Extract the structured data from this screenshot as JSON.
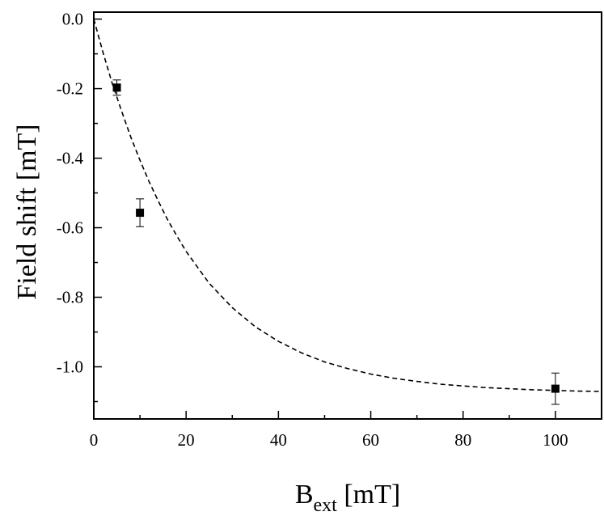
{
  "chart_data": {
    "type": "scatter",
    "xlabel": {
      "main": "B",
      "subscript": "ext",
      "unit": " [mT]"
    },
    "ylabel": "Field shift [mT]",
    "xlim": [
      0,
      110
    ],
    "ylim": [
      -1.15,
      0.02
    ],
    "xticks": [
      0,
      20,
      40,
      60,
      80,
      100
    ],
    "xtick_labels": [
      "0",
      "20",
      "40",
      "60",
      "80",
      "100"
    ],
    "yticks": [
      0.0,
      -0.2,
      -0.4,
      -0.6,
      -0.8,
      -1.0
    ],
    "ytick_labels": [
      "0.0",
      "-0.2",
      "-0.4",
      "-0.6",
      "-0.8",
      "-1.0"
    ],
    "grid": false,
    "series": [
      {
        "kind": "markers-with-errorbars",
        "marker": "square",
        "color": "#000000",
        "points": [
          {
            "x": 5,
            "y": -0.197,
            "err": 0.022
          },
          {
            "x": 10,
            "y": -0.557,
            "err": 0.04
          },
          {
            "x": 100,
            "y": -1.063,
            "err": 0.045
          }
        ]
      },
      {
        "kind": "fit-curve",
        "style": "dashed",
        "color": "#000000",
        "x": [
          0,
          2,
          4,
          6,
          8,
          10,
          12,
          14,
          16,
          18,
          20,
          25,
          30,
          35,
          40,
          45,
          50,
          55,
          60,
          65,
          70,
          75,
          80,
          85,
          90,
          95,
          100,
          105,
          110
        ],
        "y": [
          0.0,
          -0.096,
          -0.185,
          -0.264,
          -0.339,
          -0.406,
          -0.468,
          -0.524,
          -0.577,
          -0.624,
          -0.668,
          -0.76,
          -0.83,
          -0.885,
          -0.927,
          -0.96,
          -0.986,
          -1.005,
          -1.021,
          -1.033,
          -1.042,
          -1.05,
          -1.055,
          -1.06,
          -1.063,
          -1.066,
          -1.068,
          -1.07,
          -1.071
        ]
      }
    ]
  }
}
